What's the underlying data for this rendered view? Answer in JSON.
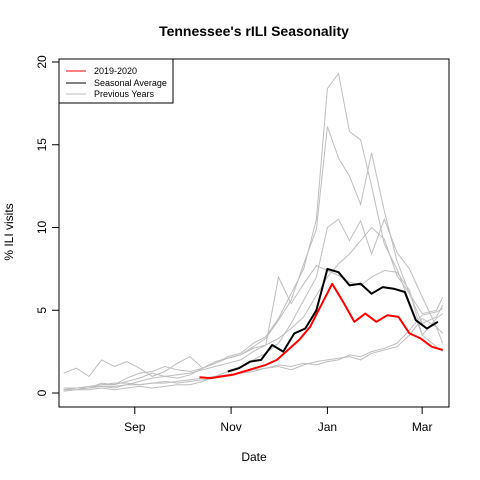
{
  "chart_data": {
    "type": "line",
    "title": "Tennessee's rILI Seasonality",
    "xlabel": "Date",
    "ylabel": "% ILI visits",
    "xlim": [
      "2019-07-15",
      "2020-03-18"
    ],
    "ylim": [
      0,
      20
    ],
    "y_ticks": [
      0,
      5,
      10,
      15,
      20
    ],
    "x_ticks": [
      {
        "date": "2019-09-01",
        "label": "Sep"
      },
      {
        "date": "2019-11-01",
        "label": "Nov"
      },
      {
        "date": "2020-01-01",
        "label": "Jan"
      },
      {
        "date": "2020-03-01",
        "label": "Mar"
      }
    ],
    "grid": false,
    "legend_position": "top-left",
    "legend": [
      {
        "label": "2019-2020",
        "color": "#ff0000"
      },
      {
        "label": "Seasonal Average",
        "color": "#000000"
      },
      {
        "label": "Previous Years",
        "color": "#bebebe"
      }
    ],
    "series": [
      {
        "name": "2019-2020",
        "color": "#ff0000",
        "points": [
          [
            "2019-10-12",
            0.95
          ],
          [
            "2019-10-19",
            0.9
          ],
          [
            "2019-10-26",
            1.0
          ],
          [
            "2019-11-02",
            1.1
          ],
          [
            "2019-11-09",
            1.3
          ],
          [
            "2019-11-16",
            1.5
          ],
          [
            "2019-11-23",
            1.7
          ],
          [
            "2019-11-30",
            2.0
          ],
          [
            "2019-12-07",
            2.6
          ],
          [
            "2019-12-14",
            3.2
          ],
          [
            "2019-12-21",
            4.0
          ],
          [
            "2019-12-28",
            5.3
          ],
          [
            "2020-01-04",
            6.6
          ],
          [
            "2020-01-11",
            5.5
          ],
          [
            "2020-01-18",
            4.3
          ],
          [
            "2020-01-25",
            4.8
          ],
          [
            "2020-02-01",
            4.3
          ],
          [
            "2020-02-08",
            4.7
          ],
          [
            "2020-02-15",
            4.6
          ],
          [
            "2020-02-22",
            3.6
          ],
          [
            "2020-02-29",
            3.3
          ],
          [
            "2020-03-07",
            2.8
          ],
          [
            "2020-03-14",
            2.6
          ]
        ]
      },
      {
        "name": "Seasonal Average",
        "color": "#000000",
        "points": [
          [
            "2019-10-30",
            1.3
          ],
          [
            "2019-11-06",
            1.5
          ],
          [
            "2019-11-13",
            1.9
          ],
          [
            "2019-11-20",
            2.0
          ],
          [
            "2019-11-27",
            2.9
          ],
          [
            "2019-12-04",
            2.5
          ],
          [
            "2019-12-11",
            3.6
          ],
          [
            "2019-12-18",
            3.9
          ],
          [
            "2019-12-25",
            5.0
          ],
          [
            "2020-01-01",
            7.5
          ],
          [
            "2020-01-08",
            7.3
          ],
          [
            "2020-01-15",
            6.5
          ],
          [
            "2020-01-22",
            6.6
          ],
          [
            "2020-01-29",
            6.0
          ],
          [
            "2020-02-05",
            6.4
          ],
          [
            "2020-02-12",
            6.3
          ],
          [
            "2020-02-19",
            6.1
          ],
          [
            "2020-02-26",
            4.4
          ],
          [
            "2020-03-04",
            3.9
          ],
          [
            "2020-03-11",
            4.3
          ]
        ]
      }
    ],
    "previous_years": [
      {
        "color": "#bebebe",
        "points": [
          [
            "2019-07-18",
            1.2
          ],
          [
            "2019-07-26",
            1.5
          ],
          [
            "2019-08-03",
            1.0
          ],
          [
            "2019-08-11",
            2.0
          ],
          [
            "2019-08-19",
            1.6
          ],
          [
            "2019-08-27",
            1.9
          ],
          [
            "2019-09-04",
            1.5
          ],
          [
            "2019-09-12",
            1.0
          ],
          [
            "2019-09-20",
            1.3
          ],
          [
            "2019-09-28",
            1.8
          ],
          [
            "2019-10-06",
            2.2
          ],
          [
            "2019-10-14",
            1.5
          ],
          [
            "2019-10-22",
            1.8
          ],
          [
            "2019-10-30",
            2.2
          ],
          [
            "2019-11-07",
            2.4
          ],
          [
            "2019-11-15",
            3.0
          ],
          [
            "2019-11-23",
            3.4
          ],
          [
            "2019-12-01",
            4.5
          ],
          [
            "2019-12-09",
            6.0
          ],
          [
            "2019-12-17",
            7.5
          ],
          [
            "2019-12-25",
            10.5
          ],
          [
            "2020-01-01",
            18.4
          ],
          [
            "2020-01-08",
            19.3
          ],
          [
            "2020-01-15",
            15.8
          ],
          [
            "2020-01-22",
            15.3
          ],
          [
            "2020-01-29",
            12.5
          ],
          [
            "2020-02-06",
            9.0
          ],
          [
            "2020-02-14",
            7.5
          ],
          [
            "2020-02-22",
            5.5
          ],
          [
            "2020-03-01",
            3.5
          ],
          [
            "2020-03-10",
            2.8
          ],
          [
            "2020-03-14",
            2.5
          ]
        ]
      },
      {
        "color": "#bebebe",
        "points": [
          [
            "2019-07-18",
            0.2
          ],
          [
            "2019-07-26",
            0.3
          ],
          [
            "2019-08-03",
            0.3
          ],
          [
            "2019-08-11",
            0.6
          ],
          [
            "2019-08-19",
            0.5
          ],
          [
            "2019-08-27",
            0.9
          ],
          [
            "2019-09-04",
            1.2
          ],
          [
            "2019-09-12",
            1.3
          ],
          [
            "2019-09-20",
            1.6
          ],
          [
            "2019-09-28",
            1.4
          ],
          [
            "2019-10-06",
            1.3
          ],
          [
            "2019-10-14",
            1.5
          ],
          [
            "2019-10-22",
            1.9
          ],
          [
            "2019-10-30",
            2.1
          ],
          [
            "2019-11-07",
            2.3
          ],
          [
            "2019-11-15",
            2.8
          ],
          [
            "2019-11-23",
            3.3
          ],
          [
            "2019-12-01",
            4.4
          ],
          [
            "2019-12-09",
            5.6
          ],
          [
            "2019-12-17",
            7.8
          ],
          [
            "2019-12-25",
            9.9
          ],
          [
            "2020-01-01",
            16.1
          ],
          [
            "2020-01-08",
            14.2
          ],
          [
            "2020-01-15",
            13.1
          ],
          [
            "2020-01-22",
            11.4
          ],
          [
            "2020-01-29",
            14.5
          ],
          [
            "2020-02-06",
            11.0
          ],
          [
            "2020-02-14",
            8.0
          ],
          [
            "2020-02-22",
            6.0
          ],
          [
            "2020-03-01",
            4.2
          ],
          [
            "2020-03-10",
            4.6
          ],
          [
            "2020-03-14",
            5.3
          ]
        ]
      },
      {
        "color": "#bebebe",
        "points": [
          [
            "2019-07-18",
            0.2
          ],
          [
            "2019-07-26",
            0.3
          ],
          [
            "2019-08-03",
            0.3
          ],
          [
            "2019-08-11",
            0.4
          ],
          [
            "2019-08-19",
            0.3
          ],
          [
            "2019-08-27",
            0.5
          ],
          [
            "2019-09-04",
            0.7
          ],
          [
            "2019-09-12",
            0.9
          ],
          [
            "2019-09-20",
            1.0
          ],
          [
            "2019-09-28",
            1.1
          ],
          [
            "2019-10-06",
            1.2
          ],
          [
            "2019-10-14",
            1.4
          ],
          [
            "2019-10-22",
            1.6
          ],
          [
            "2019-10-30",
            1.8
          ],
          [
            "2019-11-07",
            2.0
          ],
          [
            "2019-11-15",
            2.5
          ],
          [
            "2019-11-23",
            2.9
          ],
          [
            "2019-12-01",
            3.3
          ],
          [
            "2019-12-09",
            3.9
          ],
          [
            "2019-12-17",
            4.6
          ],
          [
            "2019-12-25",
            5.9
          ],
          [
            "2020-01-01",
            7.0
          ],
          [
            "2020-01-08",
            7.8
          ],
          [
            "2020-01-15",
            8.4
          ],
          [
            "2020-01-22",
            9.2
          ],
          [
            "2020-01-29",
            10.0
          ],
          [
            "2020-02-06",
            9.3
          ],
          [
            "2020-02-14",
            7.1
          ],
          [
            "2020-02-22",
            6.0
          ],
          [
            "2020-03-01",
            4.8
          ],
          [
            "2020-03-10",
            5.0
          ],
          [
            "2020-03-14",
            5.8
          ]
        ]
      },
      {
        "color": "#bebebe",
        "points": [
          [
            "2019-07-18",
            0.1
          ],
          [
            "2019-07-26",
            0.2
          ],
          [
            "2019-08-03",
            0.2
          ],
          [
            "2019-08-11",
            0.3
          ],
          [
            "2019-08-19",
            0.2
          ],
          [
            "2019-08-27",
            0.3
          ],
          [
            "2019-09-04",
            0.4
          ],
          [
            "2019-09-12",
            0.3
          ],
          [
            "2019-09-20",
            0.4
          ],
          [
            "2019-09-28",
            0.5
          ],
          [
            "2019-10-06",
            0.5
          ],
          [
            "2019-10-14",
            0.7
          ],
          [
            "2019-10-22",
            1.0
          ],
          [
            "2019-10-30",
            1.3
          ],
          [
            "2019-11-07",
            1.6
          ],
          [
            "2019-11-15",
            2.0
          ],
          [
            "2019-11-23",
            2.4
          ],
          [
            "2019-12-01",
            3.0
          ],
          [
            "2019-12-09",
            4.2
          ],
          [
            "2019-12-17",
            5.6
          ],
          [
            "2019-12-25",
            7.0
          ],
          [
            "2020-01-01",
            10.0
          ],
          [
            "2020-01-08",
            10.5
          ],
          [
            "2020-01-15",
            9.2
          ],
          [
            "2020-01-22",
            10.4
          ],
          [
            "2020-01-29",
            8.4
          ],
          [
            "2020-02-06",
            10.5
          ],
          [
            "2020-02-14",
            8.5
          ],
          [
            "2020-02-22",
            7.5
          ],
          [
            "2020-03-01",
            5.8
          ],
          [
            "2020-03-10",
            4.0
          ],
          [
            "2020-03-14",
            3.0
          ]
        ]
      },
      {
        "color": "#bebebe",
        "points": [
          [
            "2019-07-18",
            0.2
          ],
          [
            "2019-07-26",
            0.2
          ],
          [
            "2019-08-03",
            0.3
          ],
          [
            "2019-08-11",
            0.5
          ],
          [
            "2019-08-19",
            0.5
          ],
          [
            "2019-08-27",
            0.7
          ],
          [
            "2019-09-04",
            0.9
          ],
          [
            "2019-09-12",
            1.2
          ],
          [
            "2019-09-20",
            1.0
          ],
          [
            "2019-09-28",
            0.9
          ],
          [
            "2019-10-06",
            1.1
          ],
          [
            "2019-10-14",
            1.5
          ],
          [
            "2019-10-22",
            1.8
          ],
          [
            "2019-10-30",
            2.1
          ],
          [
            "2019-11-07",
            2.3
          ],
          [
            "2019-11-15",
            2.7
          ],
          [
            "2019-11-23",
            2.9
          ],
          [
            "2019-12-01",
            7.0
          ],
          [
            "2019-12-09",
            5.4
          ],
          [
            "2019-12-17",
            6.6
          ],
          [
            "2019-12-25",
            7.7
          ],
          [
            "2020-01-01",
            7.4
          ],
          [
            "2020-01-08",
            7.1
          ],
          [
            "2020-01-15",
            6.7
          ],
          [
            "2020-01-22",
            6.5
          ],
          [
            "2020-01-29",
            7.0
          ],
          [
            "2020-02-06",
            7.4
          ],
          [
            "2020-02-14",
            7.3
          ],
          [
            "2020-02-22",
            6.2
          ],
          [
            "2020-03-01",
            3.5
          ],
          [
            "2020-03-10",
            4.5
          ],
          [
            "2020-03-14",
            4.8
          ]
        ]
      },
      {
        "color": "#bebebe",
        "points": [
          [
            "2019-07-18",
            0.3
          ],
          [
            "2019-07-26",
            0.3
          ],
          [
            "2019-08-03",
            0.4
          ],
          [
            "2019-08-11",
            0.5
          ],
          [
            "2019-08-19",
            0.6
          ],
          [
            "2019-08-27",
            0.6
          ],
          [
            "2019-09-04",
            0.5
          ],
          [
            "2019-09-12",
            0.6
          ],
          [
            "2019-09-20",
            0.7
          ],
          [
            "2019-09-28",
            0.6
          ],
          [
            "2019-10-06",
            0.7
          ],
          [
            "2019-10-14",
            0.8
          ],
          [
            "2019-10-22",
            0.9
          ],
          [
            "2019-10-30",
            1.1
          ],
          [
            "2019-11-07",
            1.2
          ],
          [
            "2019-11-15",
            1.3
          ],
          [
            "2019-11-23",
            1.5
          ],
          [
            "2019-12-01",
            1.6
          ],
          [
            "2019-12-09",
            1.4
          ],
          [
            "2019-12-17",
            1.7
          ],
          [
            "2019-12-25",
            1.9
          ],
          [
            "2020-01-01",
            2.0
          ],
          [
            "2020-01-08",
            2.1
          ],
          [
            "2020-01-15",
            2.2
          ],
          [
            "2020-01-22",
            2.0
          ],
          [
            "2020-01-29",
            2.4
          ],
          [
            "2020-02-06",
            2.6
          ],
          [
            "2020-02-14",
            2.8
          ],
          [
            "2020-02-22",
            3.5
          ],
          [
            "2020-03-01",
            4.5
          ],
          [
            "2020-03-10",
            4.0
          ],
          [
            "2020-03-14",
            3.6
          ]
        ]
      },
      {
        "color": "#bebebe",
        "points": [
          [
            "2019-07-18",
            0.2
          ],
          [
            "2019-07-26",
            0.3
          ],
          [
            "2019-08-03",
            0.3
          ],
          [
            "2019-08-11",
            0.4
          ],
          [
            "2019-08-19",
            0.4
          ],
          [
            "2019-08-27",
            0.5
          ],
          [
            "2019-09-04",
            0.5
          ],
          [
            "2019-09-12",
            0.6
          ],
          [
            "2019-09-20",
            0.6
          ],
          [
            "2019-09-28",
            0.7
          ],
          [
            "2019-10-06",
            0.8
          ],
          [
            "2019-10-14",
            0.9
          ],
          [
            "2019-10-22",
            1.0
          ],
          [
            "2019-10-30",
            1.1
          ],
          [
            "2019-11-07",
            1.2
          ],
          [
            "2019-11-15",
            1.4
          ],
          [
            "2019-11-23",
            1.5
          ],
          [
            "2019-12-01",
            1.7
          ],
          [
            "2019-12-09",
            1.6
          ],
          [
            "2019-12-17",
            1.8
          ],
          [
            "2019-12-25",
            1.7
          ],
          [
            "2020-01-01",
            1.9
          ],
          [
            "2020-01-08",
            2.0
          ],
          [
            "2020-01-15",
            2.3
          ],
          [
            "2020-01-22",
            2.2
          ],
          [
            "2020-01-29",
            2.5
          ],
          [
            "2020-02-06",
            2.7
          ],
          [
            "2020-02-14",
            3.0
          ],
          [
            "2020-02-22",
            3.8
          ],
          [
            "2020-03-01",
            4.7
          ],
          [
            "2020-03-10",
            4.9
          ],
          [
            "2020-03-14",
            5.1
          ]
        ]
      }
    ]
  }
}
